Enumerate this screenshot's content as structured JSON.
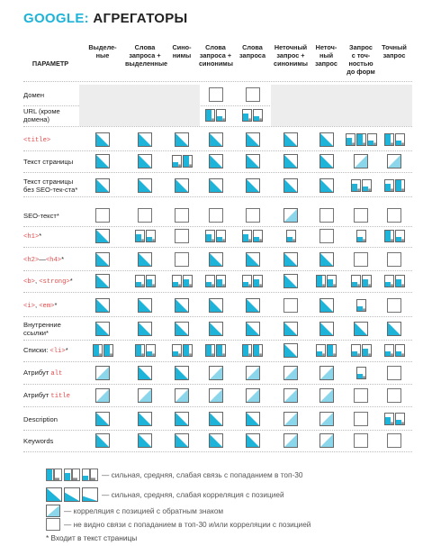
{
  "title": {
    "brand": "GOOGLE:",
    "rest": " АГРЕГАТОРЫ"
  },
  "header": {
    "param": "ПАРАМЕТР",
    "columns": [
      "Выделе-\nные",
      "Слова\nзапроса +\nвыделенные",
      "Сино-\nнимы",
      "Слова\nзапроса +\nсинонимы",
      "Слова\nзапроса",
      "Неточный\nзапрос +\nсинонимы",
      "Неточ-\nный\nзапрос",
      "Запрос\nс точ-\nностью\nдо форм",
      "Точный\nзапрос"
    ]
  },
  "rows": [
    {
      "label": [
        {
          "t": "Домен"
        }
      ],
      "cells": [
        "na",
        "na",
        "na",
        "empty",
        "empty",
        "na",
        "na",
        "na",
        "na"
      ]
    },
    {
      "label": [
        {
          "t": "URL (кроме домена)"
        }
      ],
      "cells": [
        "na",
        "na",
        "na",
        "B:3:1",
        "B:2:1",
        "na",
        "na",
        "na",
        "na"
      ]
    },
    {
      "label": [
        {
          "t": "<title>",
          "tag": true
        }
      ],
      "cells": [
        "P",
        "P",
        "P",
        "P",
        "P",
        "P",
        "P",
        "B:2:3:1",
        "B:3:1"
      ]
    },
    {
      "label": [
        {
          "t": "Текст страницы"
        }
      ],
      "cells": [
        "P",
        "P",
        "B:1:3",
        "P",
        "P",
        "P",
        "P",
        "N",
        "N"
      ]
    },
    {
      "label": [
        {
          "t": "Текст страницы без SEO-тек-ста*"
        }
      ],
      "cells": [
        "P",
        "P",
        "P",
        "P",
        "P",
        "P",
        "P",
        "B:2:1",
        "B:2:3"
      ]
    },
    {
      "label": [
        {
          "t": "SEO-текст*"
        }
      ],
      "cells": [
        "empty",
        "empty",
        "empty",
        "empty",
        "empty",
        "N",
        "empty",
        "empty",
        "empty"
      ]
    },
    {
      "label": [
        {
          "t": "<h1>",
          "tag": true
        },
        {
          "t": "*"
        }
      ],
      "cells": [
        "P",
        "B:2:1",
        "empty",
        "B:2:1",
        "B:2:1",
        "B:1",
        "empty",
        "B:1",
        "B:3:1"
      ]
    },
    {
      "label": [
        {
          "t": "<h2>",
          "tag": true
        },
        {
          "t": "—"
        },
        {
          "t": "<h4>",
          "tag": true
        },
        {
          "t": "*"
        }
      ],
      "cells": [
        "P",
        "P",
        "empty",
        "P",
        "P",
        "P",
        "P",
        "empty",
        "empty"
      ]
    },
    {
      "label": [
        {
          "t": "<b>",
          "tag": true
        },
        {
          "t": ", "
        },
        {
          "t": "<strong>",
          "tag": true
        },
        {
          "t": "*"
        }
      ],
      "cells": [
        "P",
        "B:1:2",
        "B:1:2",
        "B:1:2",
        "B:1:2",
        "P",
        "B:3:2",
        "B:1:2",
        "B:1:2"
      ]
    },
    {
      "label": [
        {
          "t": "<i>",
          "tag": true
        },
        {
          "t": ", "
        },
        {
          "t": "<em>",
          "tag": true
        },
        {
          "t": "*"
        }
      ],
      "cells": [
        "P",
        "P",
        "P",
        "P",
        "P",
        "empty",
        "P",
        "B:1",
        "empty"
      ]
    },
    {
      "label": [
        {
          "t": "Внутренние ссылки*"
        }
      ],
      "cells": [
        "P",
        "P",
        "P",
        "P",
        "P",
        "P",
        "P",
        "P",
        "P"
      ]
    },
    {
      "label": [
        {
          "t": "Списки: "
        },
        {
          "t": "<li>",
          "tag": true
        },
        {
          "t": "*"
        }
      ],
      "cells": [
        "B:3:3",
        "B:3:1",
        "B:1:3",
        "B:3:3",
        "B:3:3",
        "P",
        "B:1:3",
        "B:1:2",
        "B:1:1"
      ]
    },
    {
      "label": [
        {
          "t": "Атрибут "
        },
        {
          "t": "alt",
          "tag": true
        }
      ],
      "cells": [
        "N",
        "P",
        "P",
        "N",
        "N",
        "N",
        "N",
        "B:1",
        "empty"
      ]
    },
    {
      "label": [
        {
          "t": "Атрибут "
        },
        {
          "t": "title",
          "tag": true
        }
      ],
      "cells": [
        "N",
        "N",
        "N",
        "N",
        "N",
        "N",
        "N",
        "empty",
        "empty"
      ]
    },
    {
      "label": [
        {
          "t": "Description"
        }
      ],
      "cells": [
        "P",
        "P",
        "P",
        "P",
        "P",
        "N",
        "N",
        "empty",
        "B:2:1"
      ]
    },
    {
      "label": [
        {
          "t": "Keywords"
        }
      ],
      "cells": [
        "P",
        "P",
        "P",
        "P",
        "P",
        "N",
        "N",
        "empty",
        "empty"
      ]
    }
  ],
  "legend": [
    {
      "text": "— сильная, средняя, слабая связь с попаданием в топ-30"
    },
    {
      "text": "— сильная, средняя, слабая корреляция с позицией"
    },
    {
      "text": "— корреляция с позицией с обратным знаком"
    },
    {
      "text": "— не видно связи с попаданием в топ-30 и/или корреляции с позицией"
    }
  ],
  "footnote": "* Входит в текст страницы",
  "colors": {
    "accent": "#1eb3d8",
    "light_accent": "#8bd6ea",
    "gray": "#8c8c8c",
    "shade": "#ededed",
    "tag": "#e24a4a"
  }
}
